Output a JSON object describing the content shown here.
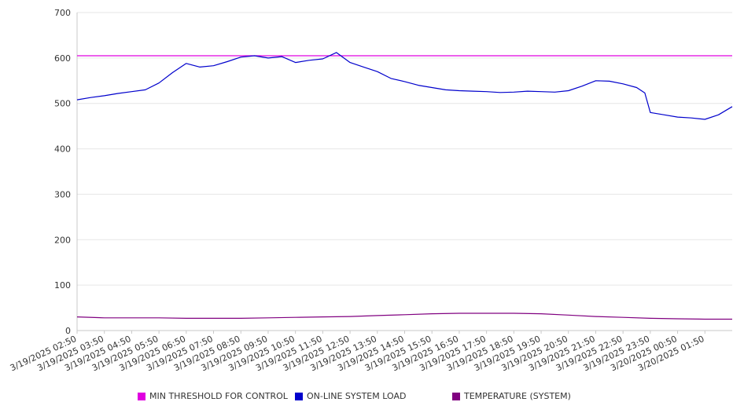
{
  "chart_data": {
    "type": "line",
    "ylim": [
      0,
      700
    ],
    "yticks": [
      0,
      100,
      200,
      300,
      400,
      500,
      600,
      700
    ],
    "ytick_labels": [
      "0",
      "100",
      "200",
      "300",
      "400",
      "500",
      "600",
      "700"
    ],
    "xtick_labels": [
      "3/19/2025 02:50",
      "3/19/2025 03:50",
      "3/19/2025 04:50",
      "3/19/2025 05:50",
      "3/19/2025 06:50",
      "3/19/2025 07:50",
      "3/19/2025 08:50",
      "3/19/2025 09:50",
      "3/19/2025 10:50",
      "3/19/2025 11:50",
      "3/19/2025 12:50",
      "3/19/2025 13:50",
      "3/19/2025 14:50",
      "3/19/2025 15:50",
      "3/19/2025 16:50",
      "3/19/2025 17:50",
      "3/19/2025 18:50",
      "3/19/2025 19:50",
      "3/19/2025 20:50",
      "3/19/2025 21:50",
      "3/19/2025 22:50",
      "3/19/2025 23:50",
      "3/20/2025 00:50",
      "3/20/2025 01:50"
    ],
    "x_range_hours": [
      0,
      24
    ],
    "grid": true,
    "legend_position": "bottom",
    "series": [
      {
        "name": "MIN THRESHOLD FOR CONTROL",
        "color": "#e000e0",
        "x": [
          0,
          24
        ],
        "y": [
          605,
          605
        ]
      },
      {
        "name": "ON-LINE SYSTEM LOAD",
        "color": "#0000cc",
        "x": [
          0,
          0.5,
          1,
          1.5,
          2,
          2.5,
          3,
          3.5,
          4,
          4.5,
          5,
          5.5,
          6,
          6.5,
          7,
          7.5,
          8,
          8.5,
          9,
          9.5,
          10,
          10.5,
          11,
          11.5,
          12,
          12.5,
          13,
          13.5,
          14,
          14.5,
          15,
          15.5,
          16,
          16.5,
          17,
          17.5,
          18,
          18.5,
          19,
          19.5,
          20,
          20.5,
          20.8,
          21,
          21.5,
          22,
          22.5,
          23,
          23.5,
          24
        ],
        "y": [
          508,
          513,
          517,
          522,
          526,
          530,
          545,
          568,
          588,
          580,
          583,
          592,
          602,
          605,
          600,
          603,
          590,
          595,
          598,
          612,
          590,
          580,
          570,
          555,
          548,
          540,
          535,
          530,
          528,
          527,
          526,
          524,
          525,
          527,
          526,
          525,
          528,
          538,
          550,
          549,
          543,
          535,
          523,
          480,
          475,
          470,
          468,
          465,
          475,
          493
        ]
      },
      {
        "name": "TEMPERATURE (SYSTEM)",
        "color": "#800080",
        "x": [
          0,
          1,
          2,
          3,
          4,
          5,
          6,
          7,
          8,
          9,
          10,
          11,
          12,
          13,
          14,
          15,
          16,
          17,
          18,
          19,
          20,
          21,
          22,
          23,
          24
        ],
        "y": [
          30,
          28,
          28,
          28,
          27,
          27,
          27,
          28,
          29,
          30,
          31,
          33,
          35,
          37,
          38,
          38,
          38,
          37,
          34,
          31,
          29,
          27,
          26,
          25,
          25
        ]
      }
    ]
  }
}
